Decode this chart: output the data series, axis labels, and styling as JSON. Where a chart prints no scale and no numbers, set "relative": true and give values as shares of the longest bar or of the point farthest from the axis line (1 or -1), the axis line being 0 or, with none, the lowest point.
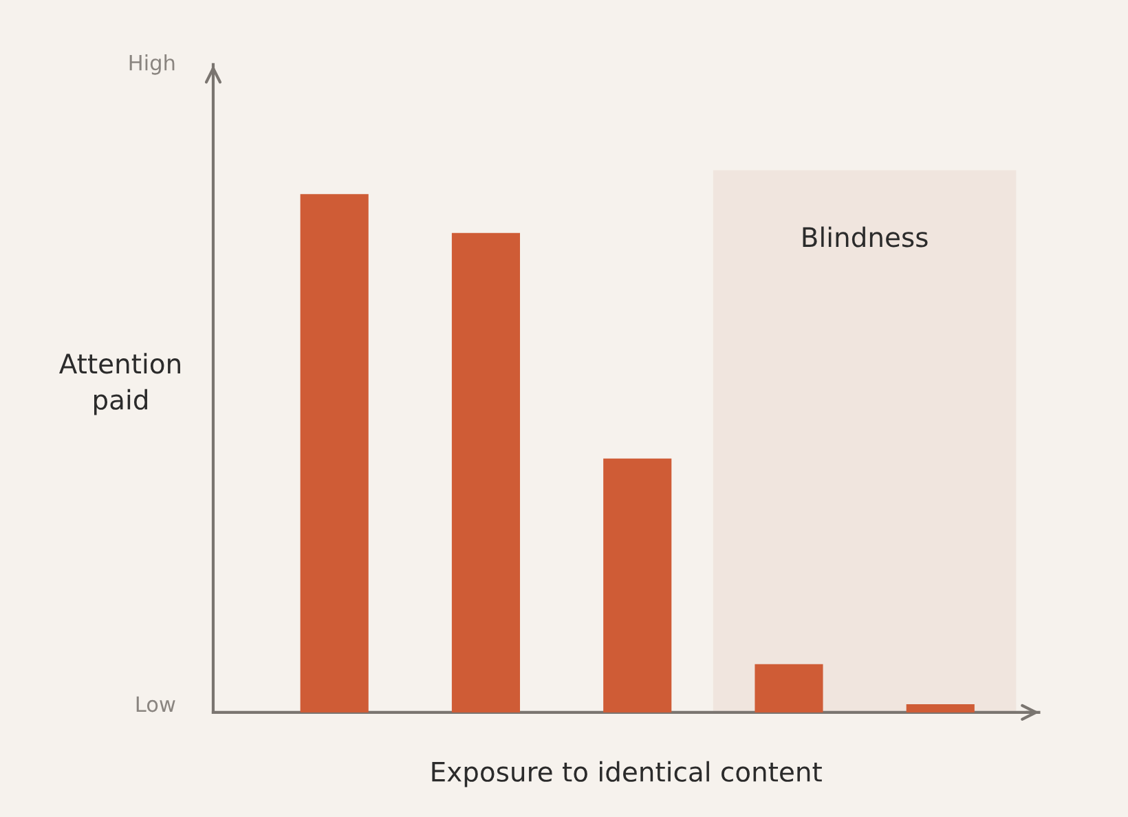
{
  "chart_data": {
    "type": "bar",
    "xlabel": "Exposure to identical content",
    "ylabel": "Attention\npaid",
    "categories": [
      null,
      null,
      null,
      null,
      null
    ],
    "values": [
      1,
      0.925,
      0.49,
      0.093,
      0.016
    ],
    "color": "#cf5c36",
    "relative": true,
    "annotations": [
      "High",
      "Low",
      "Blindness"
    ],
    "grid": false,
    "legend": false
  }
}
